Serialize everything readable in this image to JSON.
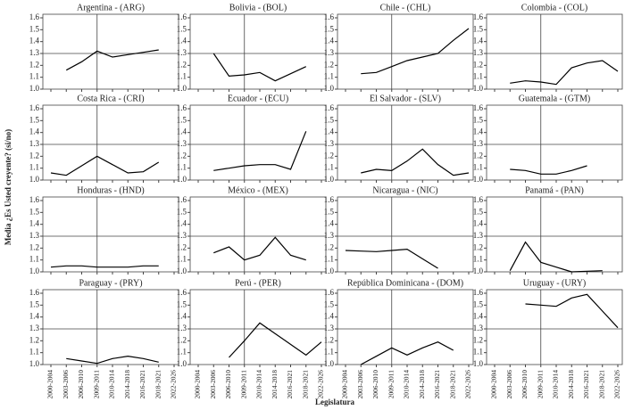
{
  "ylabel": "Media ¿Es Usted creyente? (si/no)",
  "xlabel": "Legislatura",
  "categories": [
    "2000-2004",
    "2003-2006",
    "2006-2010",
    "2009-2011",
    "2010-2014",
    "2014-2018",
    "2016-2021",
    "2018-2021",
    "2022-2026"
  ],
  "ylim": [
    1,
    1.6
  ],
  "yticks": [
    {
      "value": 1,
      "label": "1.0"
    },
    1.1,
    1.2,
    1.3,
    1.4,
    1.5,
    1.6
  ],
  "hline": 1.3,
  "vline": 3,
  "color": "#000000",
  "chart_data": [
    {
      "type": "line",
      "title": "Argentina - (ARG)",
      "values": [
        null,
        1.16,
        1.23,
        1.32,
        1.27,
        1.29,
        1.31,
        1.33,
        null
      ]
    },
    {
      "type": "line",
      "title": "Bolivia - (BOL)",
      "values": [
        null,
        1.3,
        1.11,
        1.12,
        1.14,
        1.07,
        1.13,
        1.19,
        null
      ]
    },
    {
      "type": "line",
      "title": "Chile - (CHL)",
      "values": [
        null,
        1.13,
        1.14,
        1.19,
        1.24,
        1.27,
        1.3,
        1.41,
        1.51
      ]
    },
    {
      "type": "line",
      "title": "Colombia - (COL)",
      "values": [
        null,
        1.05,
        1.07,
        1.06,
        1.04,
        1.18,
        1.22,
        1.24,
        1.15
      ]
    },
    {
      "type": "line",
      "title": "Costa Rica - (CRI)",
      "values": [
        1.06,
        1.04,
        1.12,
        1.2,
        1.13,
        1.06,
        1.07,
        1.15,
        null
      ]
    },
    {
      "type": "line",
      "title": "Ecuador - (ECU)",
      "values": [
        null,
        1.08,
        1.1,
        1.12,
        1.13,
        1.13,
        1.09,
        1.41,
        null
      ]
    },
    {
      "type": "line",
      "title": "El Salvador - (SLV)",
      "values": [
        null,
        1.06,
        1.09,
        1.08,
        1.16,
        1.26,
        1.13,
        1.04,
        1.06
      ]
    },
    {
      "type": "line",
      "title": "Guatemala - (GTM)",
      "values": [
        null,
        1.09,
        1.08,
        1.05,
        1.05,
        1.08,
        1.12,
        null,
        null
      ]
    },
    {
      "type": "line",
      "title": "Honduras - (HND)",
      "values": [
        1.04,
        1.05,
        1.05,
        1.04,
        1.04,
        1.04,
        1.05,
        1.05,
        null
      ]
    },
    {
      "type": "line",
      "title": "México - (MEX)",
      "values": [
        null,
        1.16,
        1.21,
        1.1,
        1.14,
        1.29,
        1.14,
        1.1,
        null
      ]
    },
    {
      "type": "line",
      "title": "Nicaragua - (NIC)",
      "values": [
        1.18,
        1.175,
        1.17,
        1.18,
        1.19,
        1.11,
        1.03,
        null,
        null
      ]
    },
    {
      "type": "line",
      "title": "Panamá - (PAN)",
      "values": [
        null,
        1.01,
        1.25,
        1.08,
        1.04,
        1.0,
        1.005,
        1.01,
        null
      ]
    },
    {
      "type": "line",
      "title": "Paraguay - (PRY)",
      "values": [
        null,
        1.05,
        1.03,
        1.01,
        1.05,
        1.07,
        1.05,
        1.02,
        null
      ]
    },
    {
      "type": "line",
      "title": "Perú - (PER)",
      "values": [
        null,
        null,
        1.06,
        1.2,
        1.35,
        1.26,
        1.17,
        1.08,
        1.19
      ]
    },
    {
      "type": "line",
      "title": "República Dominicana - (DOM)",
      "values": [
        null,
        1.0,
        1.07,
        1.14,
        1.08,
        1.14,
        1.19,
        1.12,
        null
      ]
    },
    {
      "type": "line",
      "title": "Uruguay - (URY)",
      "values": [
        null,
        null,
        1.51,
        1.5,
        1.49,
        1.56,
        1.59,
        1.45,
        1.31
      ]
    }
  ]
}
